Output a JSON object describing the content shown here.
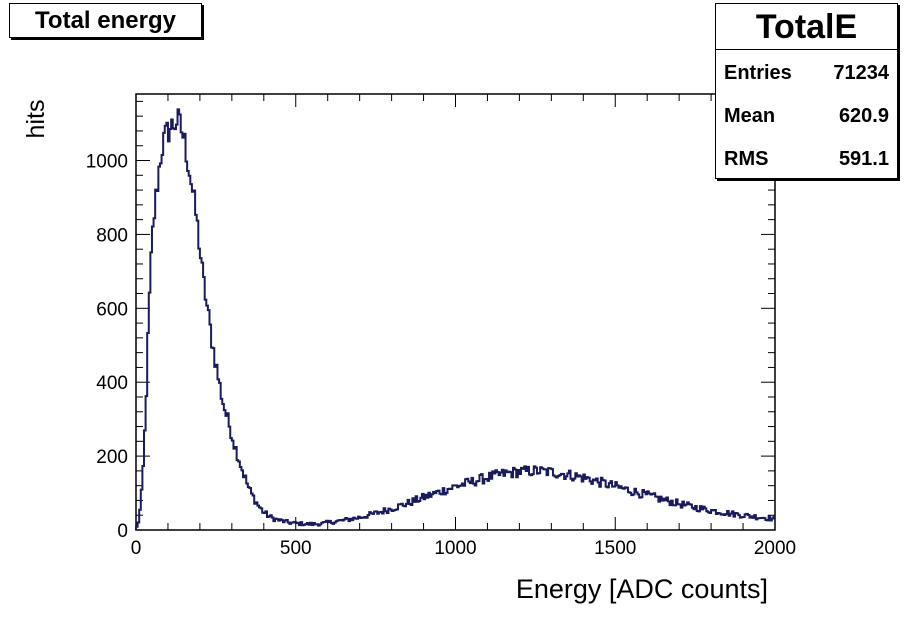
{
  "chart_data": {
    "type": "histogram",
    "title": "Total energy",
    "xlabel": "Energy [ADC counts]",
    "ylabel": "hits",
    "xlim": [
      0,
      2000
    ],
    "ylim": [
      0,
      1180
    ],
    "x_ticks": [
      0,
      500,
      1000,
      1500,
      2000
    ],
    "y_ticks": [
      0,
      200,
      400,
      600,
      800,
      1000
    ],
    "line_color": "#1a1a5e",
    "stats": {
      "name": "TotalE",
      "rows": [
        {
          "label": "Entries",
          "value": "71234"
        },
        {
          "label": "Mean",
          "value": "620.9"
        },
        {
          "label": "RMS",
          "value": "591.1"
        }
      ]
    },
    "bin_width": 5,
    "shape_points": [
      [
        0,
        0
      ],
      [
        10,
        30
      ],
      [
        20,
        120
      ],
      [
        30,
        310
      ],
      [
        40,
        580
      ],
      [
        50,
        780
      ],
      [
        60,
        880
      ],
      [
        70,
        960
      ],
      [
        80,
        1030
      ],
      [
        90,
        1060
      ],
      [
        100,
        1080
      ],
      [
        110,
        1090
      ],
      [
        120,
        1100
      ],
      [
        130,
        1110
      ],
      [
        140,
        1090
      ],
      [
        150,
        1060
      ],
      [
        160,
        1010
      ],
      [
        170,
        960
      ],
      [
        180,
        900
      ],
      [
        190,
        840
      ],
      [
        200,
        760
      ],
      [
        210,
        680
      ],
      [
        220,
        620
      ],
      [
        230,
        560
      ],
      [
        240,
        500
      ],
      [
        250,
        450
      ],
      [
        260,
        400
      ],
      [
        270,
        355
      ],
      [
        280,
        320
      ],
      [
        290,
        290
      ],
      [
        300,
        260
      ],
      [
        310,
        225
      ],
      [
        320,
        200
      ],
      [
        330,
        170
      ],
      [
        340,
        145
      ],
      [
        350,
        120
      ],
      [
        360,
        100
      ],
      [
        370,
        85
      ],
      [
        380,
        70
      ],
      [
        390,
        58
      ],
      [
        400,
        48
      ],
      [
        420,
        35
      ],
      [
        440,
        28
      ],
      [
        460,
        24
      ],
      [
        480,
        20
      ],
      [
        500,
        18
      ],
      [
        520,
        17
      ],
      [
        540,
        16
      ],
      [
        560,
        16
      ],
      [
        580,
        17
      ],
      [
        600,
        20
      ],
      [
        650,
        26
      ],
      [
        700,
        34
      ],
      [
        750,
        45
      ],
      [
        800,
        58
      ],
      [
        850,
        72
      ],
      [
        900,
        88
      ],
      [
        950,
        103
      ],
      [
        1000,
        118
      ],
      [
        1050,
        130
      ],
      [
        1100,
        142
      ],
      [
        1150,
        152
      ],
      [
        1200,
        158
      ],
      [
        1250,
        160
      ],
      [
        1300,
        157
      ],
      [
        1350,
        150
      ],
      [
        1400,
        142
      ],
      [
        1450,
        130
      ],
      [
        1500,
        118
      ],
      [
        1550,
        106
      ],
      [
        1600,
        94
      ],
      [
        1650,
        82
      ],
      [
        1700,
        71
      ],
      [
        1750,
        61
      ],
      [
        1800,
        53
      ],
      [
        1850,
        46
      ],
      [
        1900,
        40
      ],
      [
        1950,
        35
      ],
      [
        2000,
        30
      ]
    ]
  }
}
